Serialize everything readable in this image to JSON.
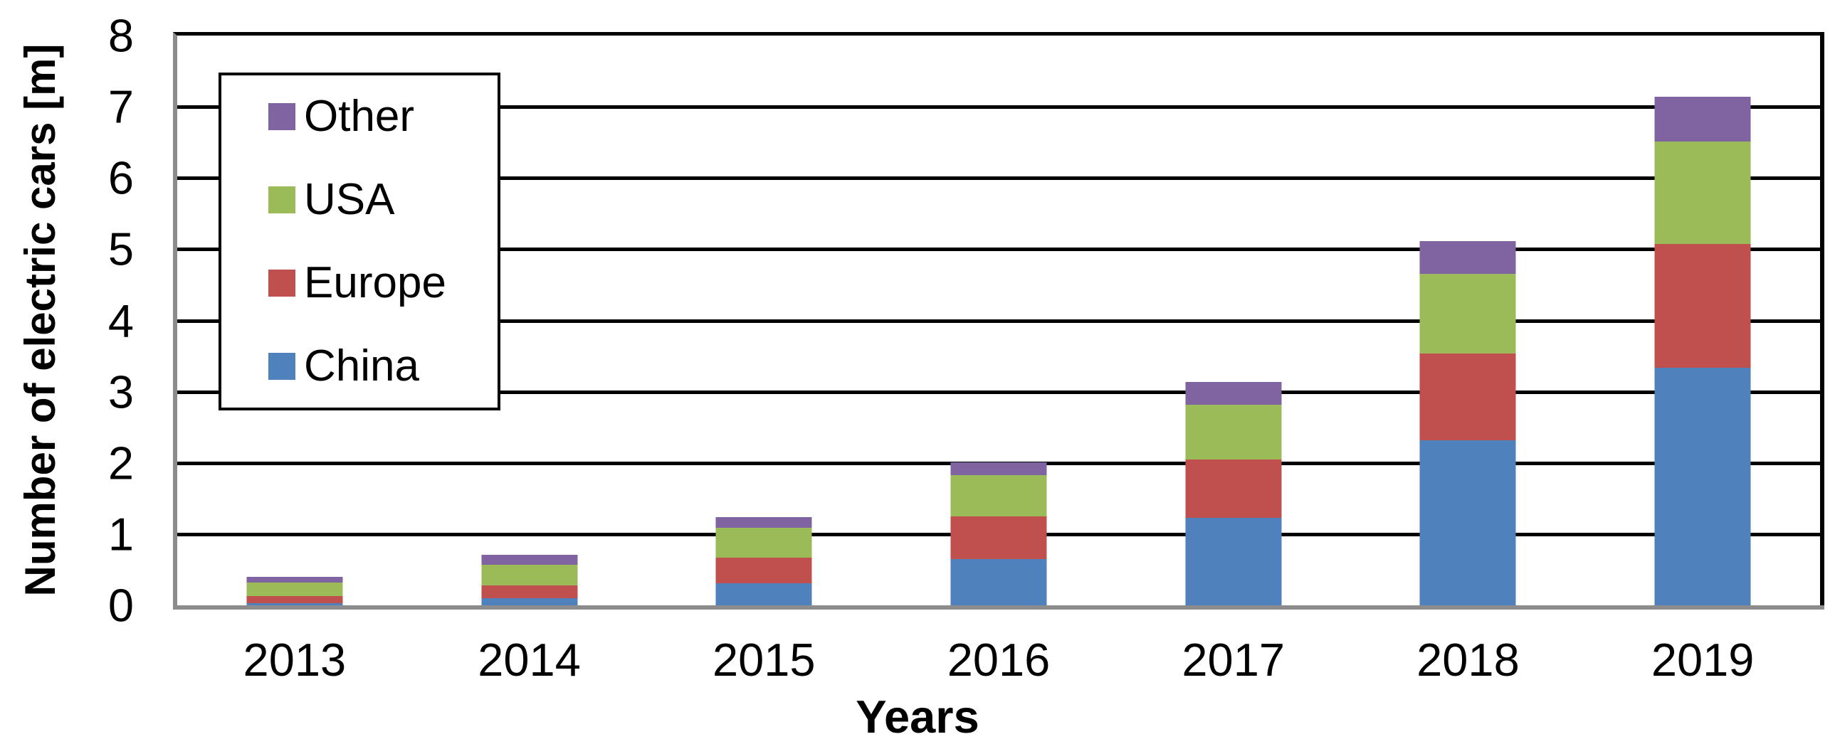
{
  "chart_data": {
    "type": "bar",
    "stacked": true,
    "title": "",
    "xlabel": "Years",
    "ylabel": "Number of electric cars [m]",
    "categories": [
      "2013",
      "2014",
      "2015",
      "2016",
      "2017",
      "2018",
      "2019"
    ],
    "series": [
      {
        "name": "China",
        "color": "#4F81BD",
        "values": [
          0.03,
          0.1,
          0.31,
          0.65,
          1.23,
          2.32,
          3.34
        ]
      },
      {
        "name": "Europe",
        "color": "#C0504D",
        "values": [
          0.1,
          0.18,
          0.36,
          0.6,
          0.82,
          1.22,
          1.73
        ]
      },
      {
        "name": "USA",
        "color": "#9BBB59",
        "values": [
          0.19,
          0.29,
          0.42,
          0.58,
          0.77,
          1.11,
          1.44
        ]
      },
      {
        "name": "Other",
        "color": "#8064A2",
        "values": [
          0.08,
          0.14,
          0.15,
          0.18,
          0.32,
          0.46,
          0.63
        ]
      }
    ],
    "stack_totals": [
      0.4,
      0.71,
      1.24,
      2.01,
      3.14,
      5.11,
      7.14
    ],
    "ylim": [
      0,
      8
    ],
    "ytick_labels": [
      "0",
      "1",
      "2",
      "3",
      "4",
      "5",
      "6",
      "7",
      "8"
    ],
    "grid": true,
    "legend": {
      "position": "top-left",
      "items": [
        "Other",
        "USA",
        "Europe",
        "China"
      ]
    },
    "colors": {
      "gridline": "#000000",
      "axis_line": "#8C8C8C",
      "plot_border": "#000000",
      "background": "#FFFFFF"
    }
  }
}
